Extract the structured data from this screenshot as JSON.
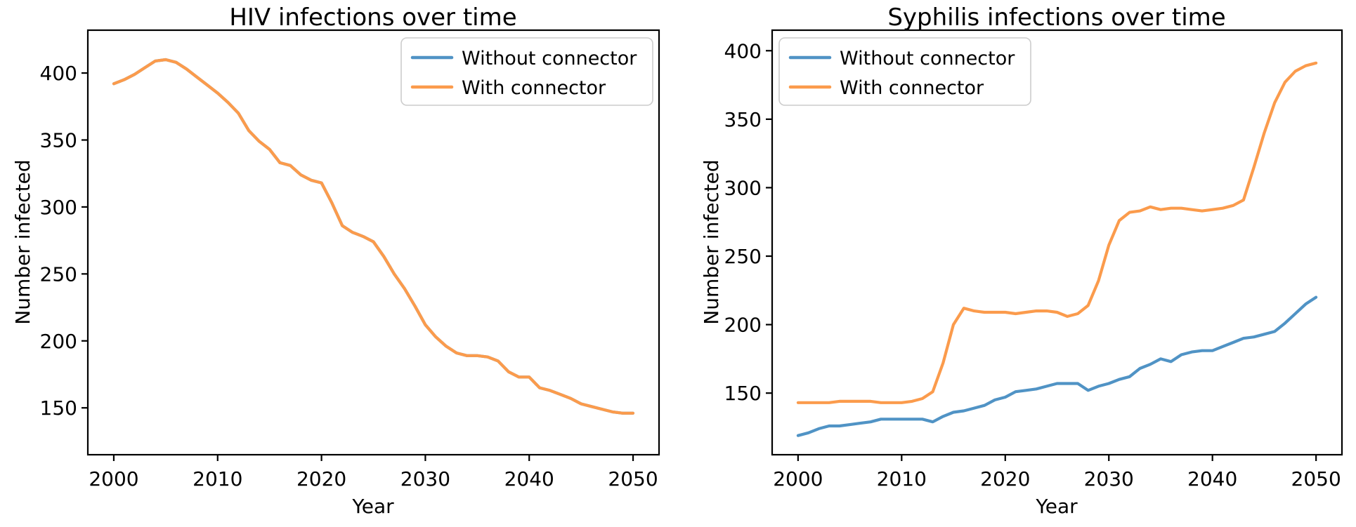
{
  "colors": {
    "without_connector": "#5093c5",
    "with_connector": "#fb9b4c",
    "axis": "#000000",
    "legend_border": "#cccccc",
    "background": "#ffffff"
  },
  "chart_data": [
    {
      "id": "hiv",
      "type": "line",
      "title": "HIV infections over time",
      "xlabel": "Year",
      "ylabel": "Number infected",
      "x_start": 2000,
      "x_step": 1,
      "x_end": 2050,
      "x_ticks": [
        2000,
        2010,
        2020,
        2030,
        2040,
        2050
      ],
      "y_ticks": [
        150,
        200,
        250,
        300,
        350,
        400
      ],
      "xlim": [
        1997.5,
        2052.5
      ],
      "ylim": [
        115,
        432
      ],
      "grid": false,
      "legend_position": "upper right",
      "note": "Both series coincide; orange drawn over blue so only orange is visible",
      "series": [
        {
          "name": "Without connector",
          "color": "#5093c5",
          "values": [
            392,
            395,
            399,
            404,
            409,
            410,
            408,
            403,
            397,
            391,
            385,
            378,
            370,
            357,
            349,
            343,
            333,
            331,
            324,
            320,
            318,
            303,
            286,
            281,
            278,
            274,
            263,
            250,
            239,
            226,
            212,
            203,
            196,
            191,
            189,
            189,
            188,
            185,
            177,
            173,
            173,
            165,
            163,
            160,
            157,
            153,
            151,
            149,
            147,
            146,
            146
          ]
        },
        {
          "name": "With connector",
          "color": "#fb9b4c",
          "values": [
            392,
            395,
            399,
            404,
            409,
            410,
            408,
            403,
            397,
            391,
            385,
            378,
            370,
            357,
            349,
            343,
            333,
            331,
            324,
            320,
            318,
            303,
            286,
            281,
            278,
            274,
            263,
            250,
            239,
            226,
            212,
            203,
            196,
            191,
            189,
            189,
            188,
            185,
            177,
            173,
            173,
            165,
            163,
            160,
            157,
            153,
            151,
            149,
            147,
            146,
            146
          ]
        }
      ]
    },
    {
      "id": "syphilis",
      "type": "line",
      "title": "Syphilis infections over time",
      "xlabel": "Year",
      "ylabel": "Number infected",
      "x_start": 2000,
      "x_step": 1,
      "x_end": 2050,
      "x_ticks": [
        2000,
        2010,
        2020,
        2030,
        2040,
        2050
      ],
      "y_ticks": [
        150,
        200,
        250,
        300,
        350,
        400
      ],
      "xlim": [
        1997.5,
        2052.5
      ],
      "ylim": [
        105,
        415
      ],
      "grid": false,
      "legend_position": "upper left",
      "series": [
        {
          "name": "Without connector",
          "color": "#5093c5",
          "values": [
            119,
            121,
            124,
            126,
            126,
            127,
            128,
            129,
            131,
            131,
            131,
            131,
            131,
            129,
            133,
            136,
            137,
            139,
            141,
            145,
            147,
            151,
            152,
            153,
            155,
            157,
            157,
            157,
            152,
            155,
            157,
            160,
            162,
            168,
            171,
            175,
            173,
            178,
            180,
            181,
            181,
            184,
            187,
            190,
            191,
            193,
            195,
            201,
            208,
            215,
            220
          ]
        },
        {
          "name": "With connector",
          "color": "#fb9b4c",
          "values": [
            143,
            143,
            143,
            143,
            144,
            144,
            144,
            144,
            143,
            143,
            143,
            144,
            146,
            151,
            172,
            200,
            212,
            210,
            209,
            209,
            209,
            208,
            209,
            210,
            210,
            209,
            206,
            208,
            214,
            232,
            258,
            276,
            282,
            283,
            286,
            284,
            285,
            285,
            284,
            283,
            284,
            285,
            287,
            291,
            315,
            340,
            362,
            377,
            385,
            389,
            391
          ]
        }
      ]
    }
  ]
}
